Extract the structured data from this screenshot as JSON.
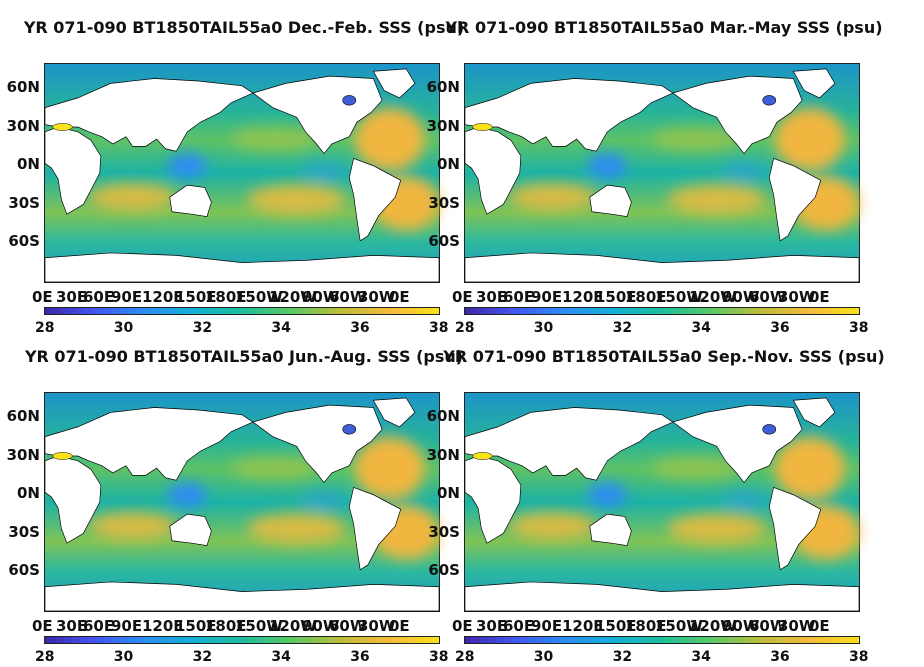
{
  "panels": [
    {
      "title": "YR 071-090 BT1850TAIL55a0 Dec.-Feb. SSS (psu)",
      "season": "DJF"
    },
    {
      "title": "YR 071-090 BT1850TAIL55a0 Mar.-May SSS (psu)",
      "season": "MAM"
    },
    {
      "title": "YR 071-090 BT1850TAIL55a0 Jun.-Aug. SSS (psu)",
      "season": "JJA"
    },
    {
      "title": "YR 071-090 BT1850TAIL55a0 Sep.-Nov. SSS (psu)",
      "season": "SON"
    }
  ],
  "lat_labels": [
    "60N",
    "30N",
    "0N",
    "30S",
    "60S"
  ],
  "lon_labels": [
    "0E",
    "30E",
    "60E",
    "90E",
    "120E",
    "150E",
    "180E",
    "150W",
    "120W",
    "90W",
    "60W",
    "30W",
    "0E"
  ],
  "colorbar": {
    "min": 28,
    "max": 38,
    "ticks": [
      "28",
      "30",
      "32",
      "34",
      "36",
      "38"
    ],
    "colors": [
      "#3e26a8",
      "#4256f0",
      "#2d8cf4",
      "#12b1d6",
      "#1cbf9c",
      "#5ac866",
      "#bcbd3a",
      "#f5ba3b",
      "#f8e21a"
    ]
  },
  "units": "psu",
  "map_colors": {
    "land": "#ffffff",
    "ocean_base": "#1cb2a6",
    "high_salinity": "#f0b640",
    "low_salinity": "#3e5fd8"
  }
}
